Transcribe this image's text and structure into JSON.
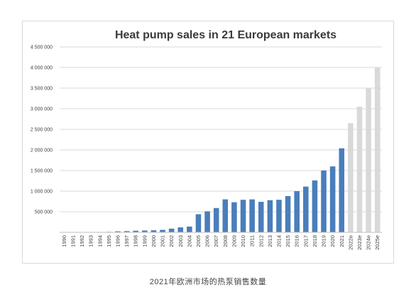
{
  "caption": "2021年欧洲市场的热泵销售数量",
  "colors": {
    "actual": "#4a7ebb",
    "estimate": "#d9d9d9",
    "grid": "#d9d9d9",
    "text": "#404040",
    "title": "#3a3a3a"
  },
  "chart_data": {
    "type": "bar",
    "title": "Heat pump sales in 21 European markets",
    "xlabel": "",
    "ylabel": "",
    "ylim": [
      0,
      4500000
    ],
    "yticks": [
      0,
      500000,
      1000000,
      1500000,
      2000000,
      2500000,
      3000000,
      3500000,
      4000000,
      4500000
    ],
    "ytick_labels": [
      "",
      "500 000",
      "1 000 000",
      "1 500 000",
      "2 000 000",
      "2 500 000",
      "3 000 000",
      "3 500 000",
      "4 000 000",
      "4 500 000"
    ],
    "grid": true,
    "legend": "none",
    "categories": [
      "1990",
      "1991",
      "1992",
      "1993",
      "1994",
      "1995",
      "1996",
      "1997",
      "1998",
      "1999",
      "2000",
      "2001",
      "2002",
      "2003",
      "2004",
      "2005",
      "2006",
      "2007",
      "2008",
      "2009",
      "2010",
      "2011",
      "2012",
      "2013",
      "2014",
      "2015",
      "2016",
      "2017",
      "2018",
      "2019",
      "2020",
      "2021",
      "2022e",
      "2023e",
      "2024e",
      "2025e"
    ],
    "values": [
      5000,
      6000,
      7000,
      8000,
      9000,
      12000,
      25000,
      30000,
      40000,
      45000,
      50000,
      60000,
      90000,
      120000,
      140000,
      440000,
      510000,
      590000,
      800000,
      730000,
      790000,
      800000,
      740000,
      780000,
      790000,
      880000,
      1000000,
      1110000,
      1260000,
      1500000,
      1600000,
      2040000,
      2650000,
      3050000,
      3500000,
      4000000
    ],
    "estimate_from_index": 32
  }
}
